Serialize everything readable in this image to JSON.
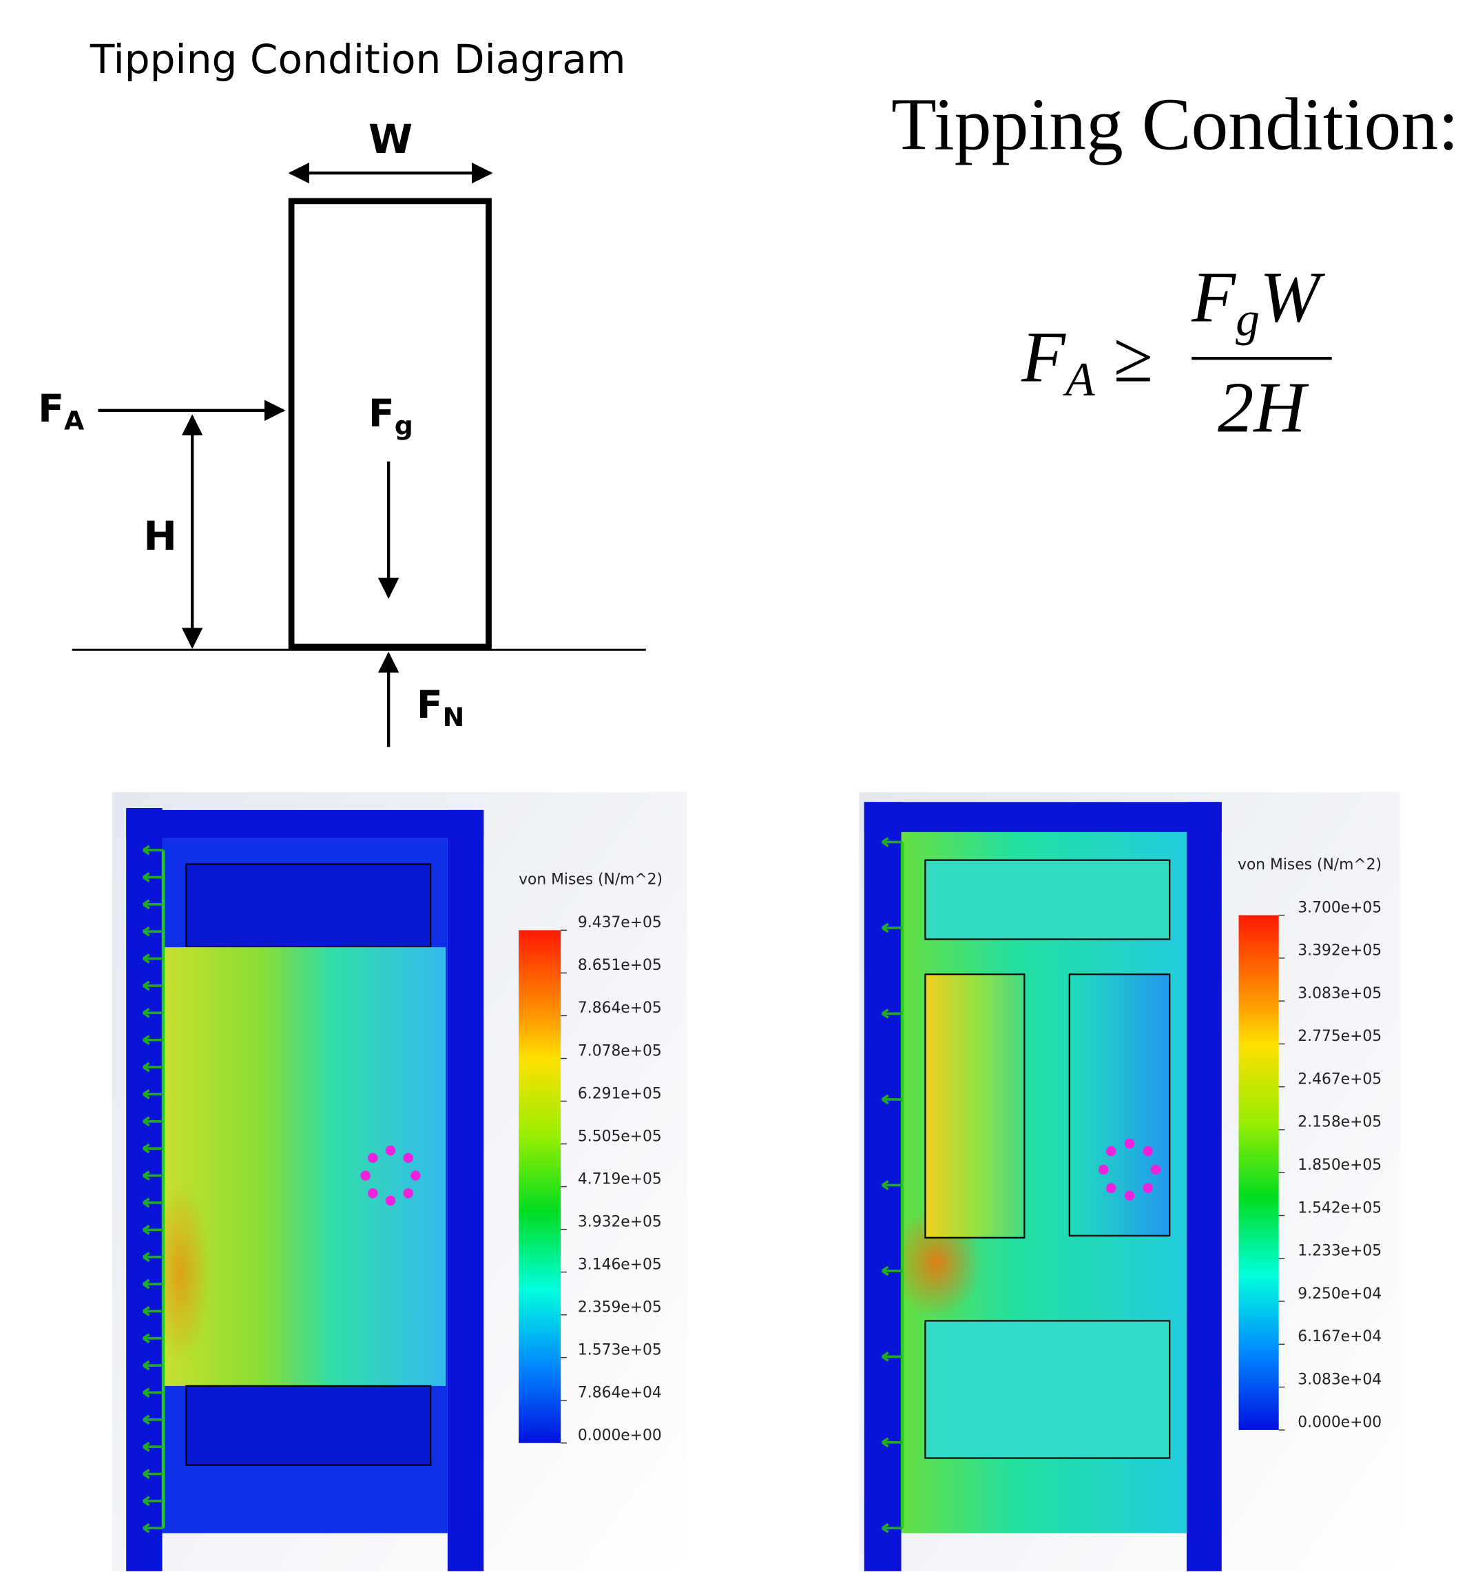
{
  "diagram": {
    "title": "Tipping Condition Diagram",
    "width_label": "W",
    "height_label": "H",
    "applied_force": {
      "symbol": "F",
      "subscript": "A"
    },
    "gravity_force": {
      "symbol": "F",
      "subscript": "g"
    },
    "normal_force": {
      "symbol": "F",
      "subscript": "N"
    }
  },
  "formula": {
    "heading": "Tipping Condition:",
    "lhs": {
      "symbol": "F",
      "subscript": "A"
    },
    "relation": "≥",
    "numerator": {
      "symbol": "F",
      "subscript": "g",
      "rest": "W"
    },
    "denominator": "2H"
  },
  "plots": [
    {
      "legend_title": "von Mises (N/m^2)",
      "legend_labels": [
        "9.437e+05",
        "8.651e+05",
        "7.864e+05",
        "7.078e+05",
        "6.291e+05",
        "5.505e+05",
        "4.719e+05",
        "3.932e+05",
        "3.146e+05",
        "2.359e+05",
        "1.573e+05",
        "7.864e+04",
        "0.000e+00"
      ]
    },
    {
      "legend_title": "von Mises (N/m^2)",
      "legend_labels": [
        "3.700e+05",
        "3.392e+05",
        "3.083e+05",
        "2.775e+05",
        "2.467e+05",
        "2.158e+05",
        "1.850e+05",
        "1.542e+05",
        "1.233e+05",
        "9.250e+04",
        "6.167e+04",
        "3.083e+04",
        "0.000e+00"
      ]
    }
  ]
}
